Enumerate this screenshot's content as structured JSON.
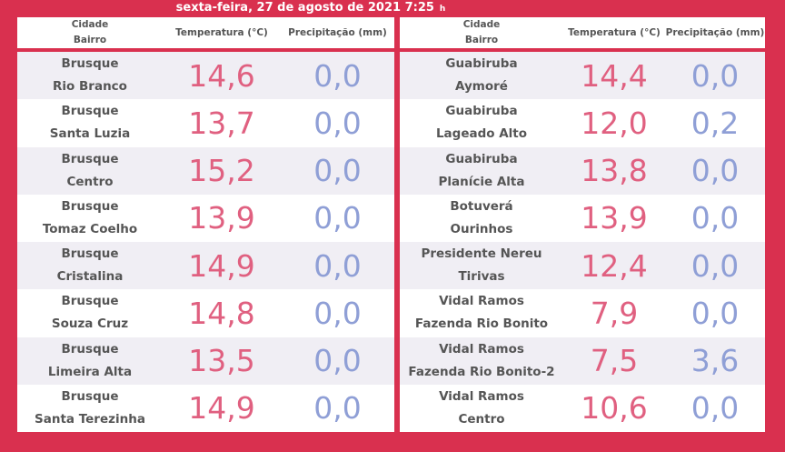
{
  "header": {
    "date_time": "sexta-feira, 27 de agosto de 2021   7:25",
    "unit": "h"
  },
  "columns": {
    "location_city": "Cidade",
    "location_district": "Bairro",
    "temperature": "Temperatura (°C)",
    "precipitation": "Precipitação (mm)"
  },
  "left_table": [
    {
      "city": "Brusque",
      "district": "Rio Branco",
      "temp": "14,6",
      "precip": "0,0"
    },
    {
      "city": "Brusque",
      "district": "Santa Luzia",
      "temp": "13,7",
      "precip": "0,0"
    },
    {
      "city": "Brusque",
      "district": "Centro",
      "temp": "15,2",
      "precip": "0,0"
    },
    {
      "city": "Brusque",
      "district": "Tomaz Coelho",
      "temp": "13,9",
      "precip": "0,0"
    },
    {
      "city": "Brusque",
      "district": "Cristalina",
      "temp": "14,9",
      "precip": "0,0"
    },
    {
      "city": "Brusque",
      "district": "Souza Cruz",
      "temp": "14,8",
      "precip": "0,0"
    },
    {
      "city": "Brusque",
      "district": "Limeira Alta",
      "temp": "13,5",
      "precip": "0,0"
    },
    {
      "city": "Brusque",
      "district": "Santa Terezinha",
      "temp": "14,9",
      "precip": "0,0"
    }
  ],
  "right_table": [
    {
      "city": "Guabiruba",
      "district": "Aymoré",
      "temp": "14,4",
      "precip": "0,0"
    },
    {
      "city": "Guabiruba",
      "district": "Lageado Alto",
      "temp": "12,0",
      "precip": "0,2"
    },
    {
      "city": "Guabiruba",
      "district": "Planície Alta",
      "temp": "13,8",
      "precip": "0,0"
    },
    {
      "city": "Botuverá",
      "district": "Ourinhos",
      "temp": "13,9",
      "precip": "0,0"
    },
    {
      "city": "Presidente Nereu",
      "district": "Tirivas",
      "temp": "12,4",
      "precip": "0,0"
    },
    {
      "city": "Vidal Ramos",
      "district": "Fazenda Rio Bonito",
      "temp": "7,9",
      "precip": "0,0"
    },
    {
      "city": "Vidal Ramos",
      "district": "Fazenda Rio Bonito-2",
      "temp": "7,5",
      "precip": "3,6"
    },
    {
      "city": "Vidal Ramos",
      "district": "Centro",
      "temp": "10,6",
      "precip": "0,0"
    }
  ],
  "colors": {
    "background": "#d9304f",
    "temperature": "#e06080",
    "precipitation": "#8f9fd6",
    "row_alt": "#f0eef4"
  }
}
